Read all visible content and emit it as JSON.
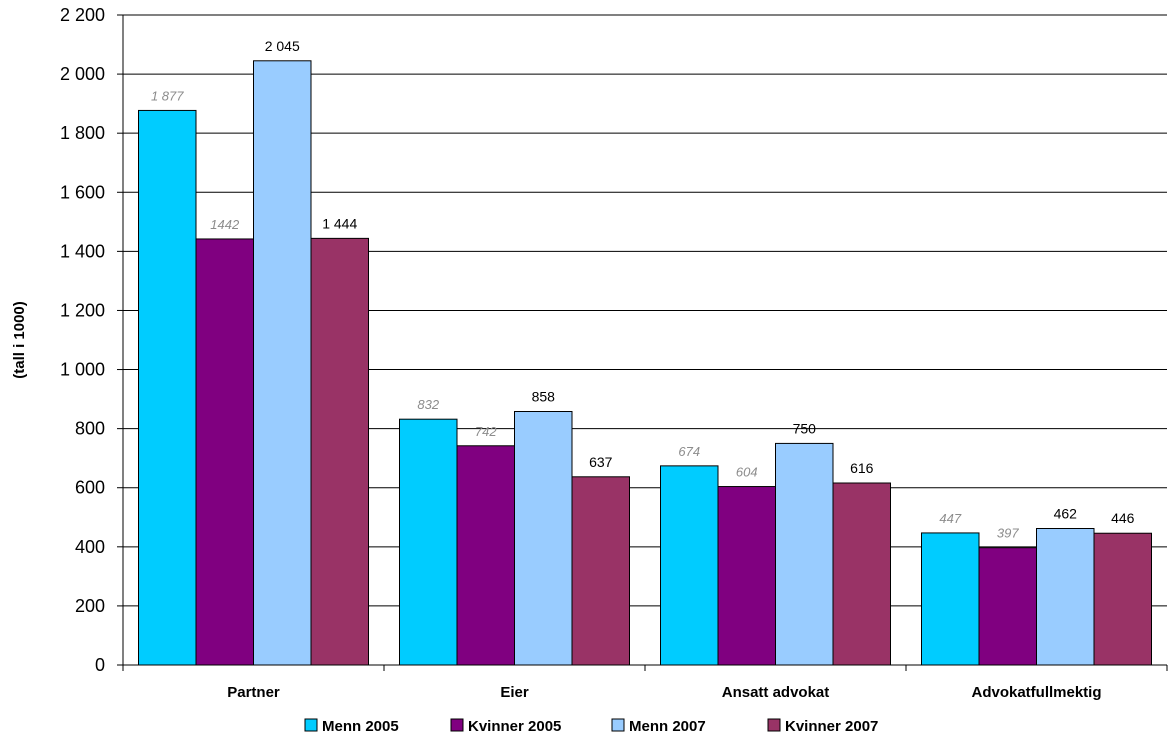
{
  "chart_data": {
    "type": "bar",
    "ylabel": "(tall i 1000)",
    "ylim": [
      0,
      2200
    ],
    "ytick_step": 200,
    "ytick_labels": [
      "0",
      "200",
      "400",
      "600",
      "800",
      "1 000",
      "1 200",
      "1 400",
      "1 600",
      "1 800",
      "2 000",
      "2 200"
    ],
    "grid": true,
    "legend_position": "bottom",
    "categories": [
      "Partner",
      "Eier",
      "Ansatt advokat",
      "Advokatfullmektig"
    ],
    "series": [
      {
        "name": "Menn 2005",
        "color": "#00CCFF",
        "values": [
          1877,
          832,
          674,
          447
        ],
        "labels": [
          "1 877",
          "832",
          "674",
          "447"
        ],
        "label_style": "italic-grey"
      },
      {
        "name": "Kvinner 2005",
        "color": "#800080",
        "values": [
          1442,
          742,
          604,
          397
        ],
        "labels": [
          "1442",
          "742",
          "604",
          "397"
        ],
        "label_style": "italic-grey"
      },
      {
        "name": "Menn 2007",
        "color": "#99CCFF",
        "values": [
          2045,
          858,
          750,
          462
        ],
        "labels": [
          "2 045",
          "858",
          "750",
          "462"
        ],
        "label_style": "normal"
      },
      {
        "name": "Kvinner 2007",
        "color": "#993366",
        "values": [
          1444,
          637,
          616,
          446
        ],
        "labels": [
          "1 444",
          "637",
          "616",
          "446"
        ],
        "label_style": "normal"
      }
    ]
  }
}
